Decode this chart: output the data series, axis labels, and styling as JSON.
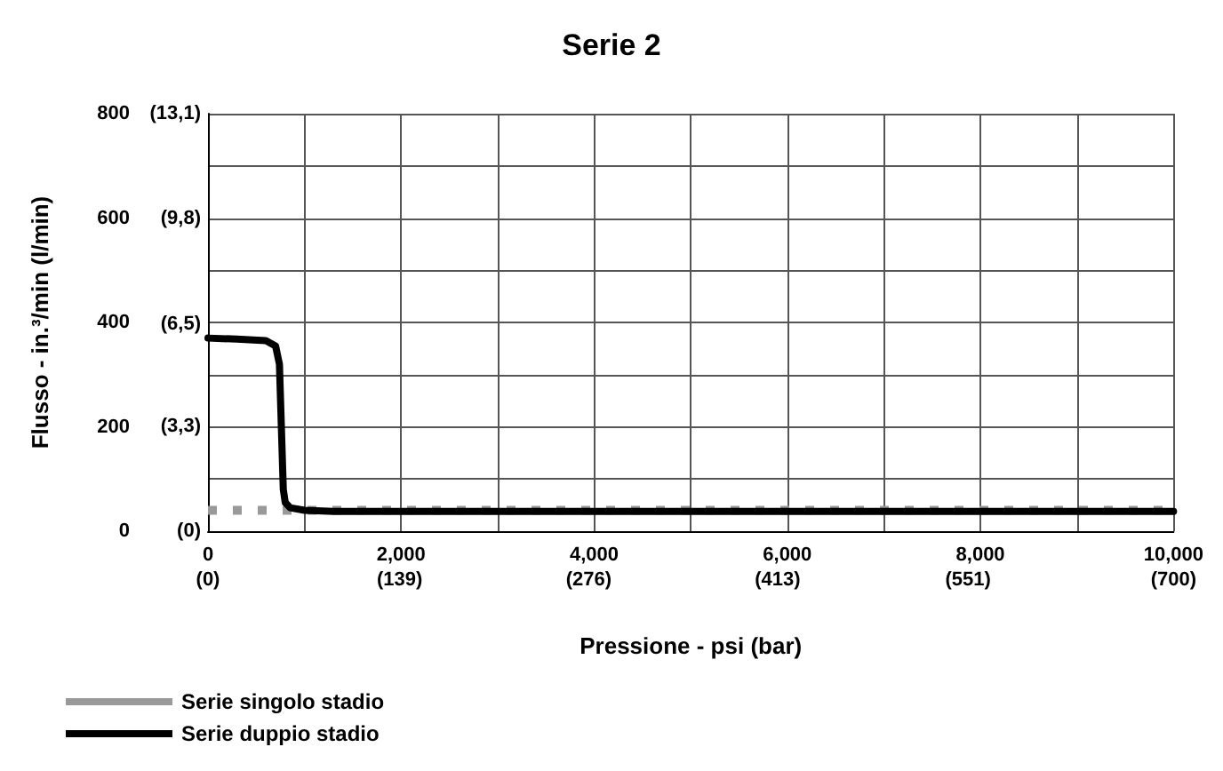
{
  "chart_data": {
    "type": "line",
    "title": "Serie 2",
    "xlabel": "Pressione - psi (bar)",
    "ylabel": "Flusso - in.³/min (l/min)",
    "xlim": [
      0,
      10000
    ],
    "ylim": [
      0,
      800
    ],
    "xticks": [
      0,
      {
        "value": 1000,
        "label": null
      },
      {
        "value": 2000,
        "label": "2,000"
      },
      {
        "value": 3000,
        "label": null
      },
      {
        "value": 4000,
        "label": "4,000"
      },
      {
        "value": 5000,
        "label": null
      },
      {
        "value": 6000,
        "label": "6,000"
      },
      {
        "value": 7000,
        "label": null
      },
      {
        "value": 8000,
        "label": "8,000"
      },
      {
        "value": 9000,
        "label": null
      },
      {
        "value": 10000,
        "label": "10,000"
      }
    ],
    "x2lim": [
      0,
      700
    ],
    "x2ticks": [
      {
        "value": 0,
        "label": "(0)"
      },
      {
        "value": 139,
        "label": "(139)"
      },
      {
        "value": 276,
        "label": "(276)"
      },
      {
        "value": 413,
        "label": "(413)"
      },
      {
        "value": 551,
        "label": "(551)"
      },
      {
        "value": 700,
        "label": "(700)"
      }
    ],
    "yticks": [
      0,
      {
        "value": 100,
        "label": null
      },
      200,
      {
        "value": 300,
        "label": null
      },
      400,
      {
        "value": 500,
        "label": null
      },
      600,
      {
        "value": 700,
        "label": null
      },
      800
    ],
    "y2lim": [
      0,
      13.1
    ],
    "y2ticks": [
      {
        "value": 0,
        "label": "(0)"
      },
      {
        "value": 3.3,
        "label": "(3,3)"
      },
      {
        "value": 6.5,
        "label": "(6,5)"
      },
      {
        "value": 9.8,
        "label": "(9,8)"
      },
      {
        "value": 13.1,
        "label": "(13,1)"
      }
    ],
    "grid": true,
    "legend": "bottom left",
    "marker": "none",
    "series": [
      {
        "name": "Serie singolo stadio",
        "color": "#999999",
        "line_style": "dotted",
        "x": [
          0,
          10000
        ],
        "values": [
          40,
          40
        ]
      },
      {
        "name": "Serie duppio stadio",
        "color": "#000000",
        "line_style": "solid",
        "x": [
          0,
          300,
          600,
          700,
          740,
          760,
          780,
          800,
          850,
          1000,
          1300,
          2000,
          10000
        ],
        "values": [
          370,
          368,
          365,
          355,
          320,
          200,
          80,
          55,
          45,
          40,
          38,
          38,
          38
        ]
      }
    ]
  }
}
